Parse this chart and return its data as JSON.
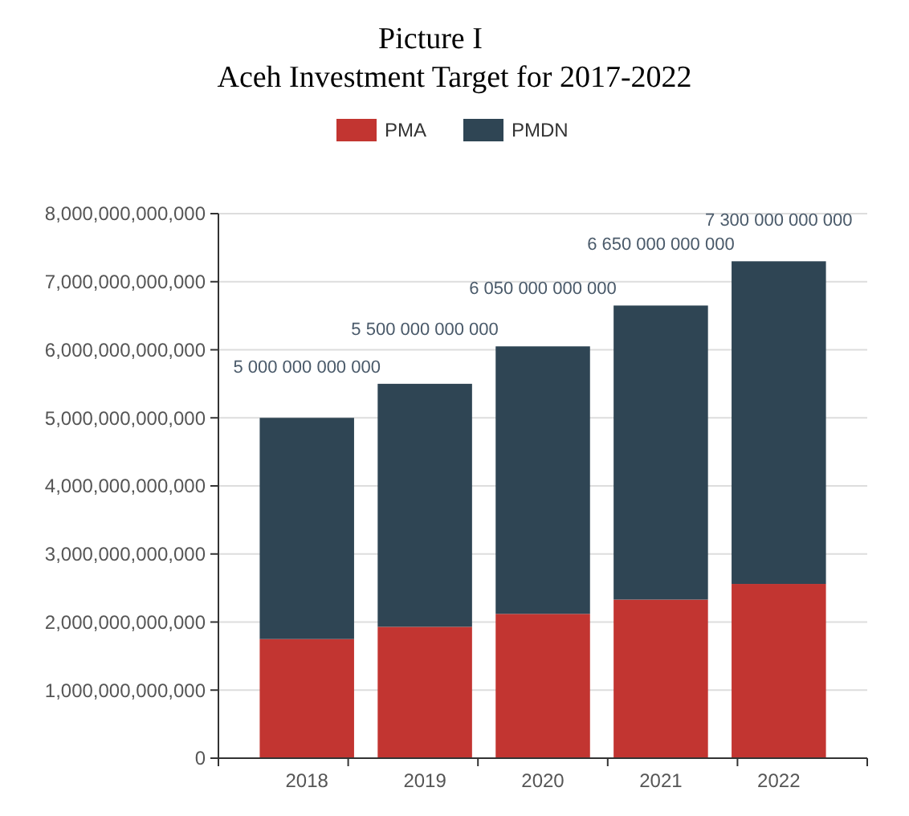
{
  "chart_data": {
    "type": "bar",
    "title": "Picture I",
    "subtitle": "Aceh Investment Target for 2017-2022",
    "categories": [
      "2018",
      "2019",
      "2020",
      "2021",
      "2022"
    ],
    "stacked": true,
    "series": [
      {
        "name": "PMA",
        "color": "#c23531",
        "values": [
          1750000000000,
          1930000000000,
          2120000000000,
          2330000000000,
          2560000000000
        ]
      },
      {
        "name": "PMDN",
        "color": "#2f4554",
        "values": [
          3250000000000,
          3570000000000,
          3930000000000,
          4320000000000,
          4740000000000
        ]
      }
    ],
    "totals": [
      "5 000 000 000 000",
      "5 500 000 000 000",
      "6 050 000 000 000",
      "6 650 000 000 000",
      "7 300 000 000 000"
    ],
    "ylim": [
      0,
      8000000000000
    ],
    "yticks": [
      0,
      {
        "value": 1000000000000,
        "label": "1,000,000,000,000"
      },
      {
        "value": 2000000000000,
        "label": "2,000,000,000,000"
      },
      {
        "value": 3000000000000,
        "label": "3,000,000,000,000"
      },
      {
        "value": 4000000000000,
        "label": "4,000,000,000,000"
      },
      {
        "value": 5000000000000,
        "label": "5,000,000,000,000"
      },
      {
        "value": 6000000000000,
        "label": "6,000,000,000,000"
      },
      {
        "value": 7000000000000,
        "label": "7,000,000,000,000"
      },
      {
        "value": 8000000000000,
        "label": "8,000,000,000,000"
      }
    ],
    "grid": "y",
    "legend": "top"
  }
}
